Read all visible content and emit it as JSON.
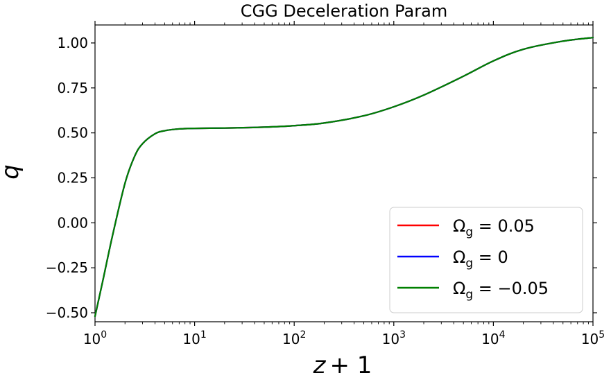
{
  "chart_data": {
    "type": "line",
    "title": "CGG Deceleration Param",
    "ylabel": "q",
    "xlabel": "z + 1",
    "xscale": "log",
    "xlim": [
      1,
      100000
    ],
    "ylim": [
      -0.55,
      1.1
    ],
    "yticks": [
      1.0,
      0.75,
      0.5,
      0.25,
      0.0,
      -0.25,
      -0.5
    ],
    "ytick_labels": [
      "1.00",
      "0.75",
      "0.50",
      "0.25",
      "0.00",
      "−0.25",
      "−0.50"
    ],
    "xticks": [
      {
        "value": 1,
        "base": "10",
        "exp": "0"
      },
      {
        "value": 10,
        "base": "10",
        "exp": "1"
      },
      {
        "value": 100,
        "base": "10",
        "exp": "2"
      },
      {
        "value": 1000,
        "base": "10",
        "exp": "3"
      },
      {
        "value": 10000,
        "base": "10",
        "exp": "4"
      },
      {
        "value": 100000,
        "base": "10",
        "exp": "5"
      }
    ],
    "legend_position": "lower-right",
    "x": [
      1,
      1.2,
      1.5,
      2,
      2.5,
      3,
      4,
      5,
      7,
      10,
      20,
      50,
      100,
      200,
      500,
      1000,
      2000,
      5000,
      10000,
      20000,
      50000,
      100000
    ],
    "series": [
      {
        "name_sym": "Ω",
        "name_sub": "g",
        "name_rest": " = 0.05",
        "color": "#ff0000",
        "values": [
          -0.52,
          -0.32,
          -0.07,
          0.22,
          0.37,
          0.44,
          0.495,
          0.512,
          0.522,
          0.525,
          0.527,
          0.532,
          0.54,
          0.555,
          0.595,
          0.645,
          0.71,
          0.815,
          0.9,
          0.965,
          1.01,
          1.03
        ]
      },
      {
        "name_sym": "Ω",
        "name_sub": "g",
        "name_rest": " = 0",
        "color": "#0000ff",
        "values": [
          -0.52,
          -0.32,
          -0.07,
          0.22,
          0.37,
          0.44,
          0.495,
          0.512,
          0.522,
          0.525,
          0.527,
          0.532,
          0.54,
          0.555,
          0.595,
          0.645,
          0.71,
          0.815,
          0.9,
          0.965,
          1.01,
          1.03
        ]
      },
      {
        "name_sym": "Ω",
        "name_sub": "g",
        "name_rest": " = −0.05",
        "color": "#008000",
        "values": [
          -0.52,
          -0.32,
          -0.07,
          0.22,
          0.37,
          0.44,
          0.495,
          0.512,
          0.522,
          0.525,
          0.527,
          0.532,
          0.54,
          0.555,
          0.595,
          0.645,
          0.71,
          0.815,
          0.9,
          0.965,
          1.01,
          1.03
        ]
      }
    ]
  }
}
